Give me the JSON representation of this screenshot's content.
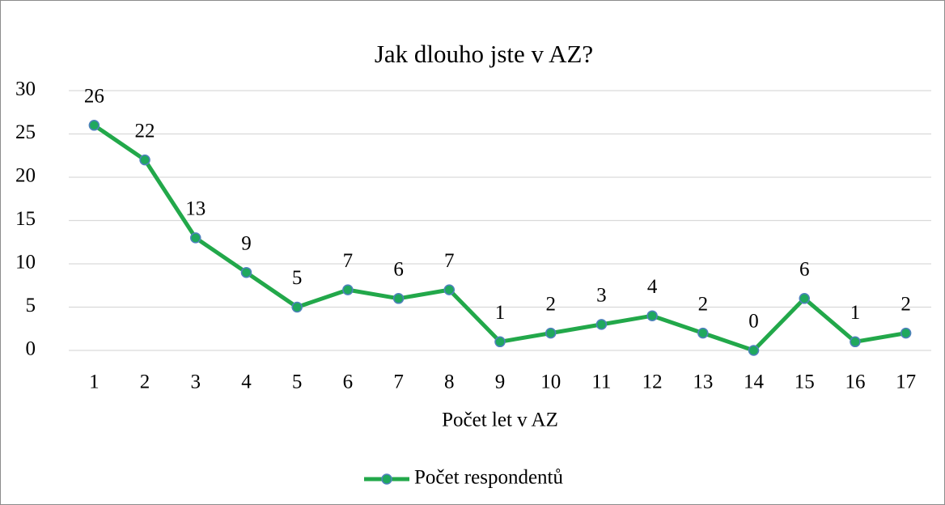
{
  "chart_data": {
    "type": "line",
    "title": "Jak dlouho jste v AZ?",
    "x_label": "Počet let v AZ",
    "categories": [
      "1",
      "2",
      "3",
      "4",
      "5",
      "6",
      "7",
      "8",
      "9",
      "10",
      "11",
      "12",
      "13",
      "14",
      "15",
      "16",
      "17"
    ],
    "series": [
      {
        "name": "Počet respondentů",
        "color": "#22a84a",
        "marker_color": "#1fa85e",
        "marker_edge": "#4f81bd",
        "values": [
          26,
          22,
          13,
          9,
          5,
          7,
          6,
          7,
          1,
          2,
          3,
          4,
          2,
          0,
          6,
          1,
          2
        ]
      }
    ],
    "ylim": [
      0,
      30
    ],
    "yticks": [
      0,
      5,
      10,
      15,
      20,
      25,
      30
    ],
    "grid": true,
    "legend": "bottom"
  }
}
